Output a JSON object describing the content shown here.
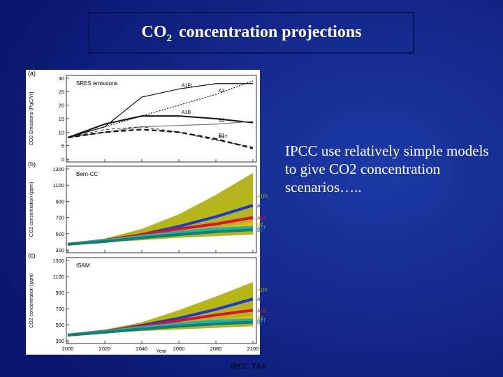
{
  "title": {
    "main": "CO",
    "subscript": "2",
    "rest": "concentration projections"
  },
  "body_text": "IPCC use relatively simple models to give  CO2 concentration scenarios…..",
  "footer": "IPCC TAR",
  "figure": {
    "x": [
      2000,
      2020,
      2040,
      2060,
      2080,
      2100
    ],
    "xlim": [
      2000,
      2100
    ],
    "xticks": [
      2000,
      2020,
      2040,
      2060,
      2080,
      2100
    ],
    "xlabel": "Year",
    "panels": [
      {
        "tag": "(a)",
        "label": "SRES emissions",
        "ylabel": "CO2 Emissions [PgC/Yr]",
        "ylim": [
          0,
          30
        ],
        "yticks": [
          0,
          5,
          10,
          15,
          20,
          25,
          30
        ],
        "series": [
          {
            "name": "A1FI",
            "color": "#111111",
            "style": "solid",
            "values": [
              8,
              12,
              23,
              26,
              28,
              28
            ]
          },
          {
            "name": "A2",
            "color": "#111111",
            "style": "dotted",
            "values": [
              8,
              12,
              16,
              20,
              24,
              29
            ]
          },
          {
            "name": "A1B",
            "color": "#111111",
            "style": "bold",
            "values": [
              8,
              13,
              16,
              16,
              15,
              13.5
            ]
          },
          {
            "name": "B2",
            "color": "#777777",
            "style": "solid",
            "values": [
              8,
              10,
              12,
              12.5,
              13,
              14
            ]
          },
          {
            "name": "A1T",
            "color": "#333333",
            "style": "dashed",
            "values": [
              8,
              11,
              12,
              10,
              7,
              4.5
            ]
          },
          {
            "name": "B1",
            "color": "#111111",
            "style": "bolddash",
            "values": [
              8,
              10,
              11,
              10,
              7.5,
              4
            ]
          }
        ]
      },
      {
        "tag": "(b)",
        "label": "Bern-CC",
        "ylabel": "CO2 concentration (ppm)",
        "ylim": [
          300,
          1300
        ],
        "yticks": [
          300,
          500,
          700,
          900,
          1100,
          1300
        ],
        "envelope": {
          "color": "#b5b520",
          "upper": [
            370,
            440,
            560,
            740,
            980,
            1250
          ],
          "lower": [
            370,
            395,
            420,
            450,
            470,
            490
          ]
        },
        "series": [
          {
            "name": "A1FI",
            "color": "#b8b800",
            "style": "band",
            "values": [
              370,
              420,
              510,
              640,
              790,
              970
            ]
          },
          {
            "name": "A2",
            "color": "#1a3ad0",
            "style": "band",
            "values": [
              370,
              415,
              490,
              590,
              710,
              850
            ]
          },
          {
            "name": "A1B",
            "color": "#e0102a",
            "style": "band",
            "values": [
              370,
              420,
              490,
              560,
              620,
              700
            ]
          },
          {
            "name": "B2",
            "color": "#e8c000",
            "style": "band",
            "values": [
              370,
              405,
              450,
              500,
              560,
              620
            ]
          },
          {
            "name": "A1T",
            "color": "#20b0b0",
            "style": "band",
            "values": [
              370,
              415,
              470,
              520,
              560,
              580
            ]
          },
          {
            "name": "B1",
            "color": "#108070",
            "style": "band",
            "values": [
              370,
              405,
              450,
              490,
              525,
              550
            ]
          }
        ]
      },
      {
        "tag": "(c)",
        "label": "ISAM",
        "ylabel": "CO2 concentration (ppm)",
        "ylim": [
          300,
          1300
        ],
        "yticks": [
          300,
          500,
          700,
          900,
          1100,
          1300
        ],
        "envelope": {
          "color": "#b5b520",
          "upper": [
            370,
            430,
            530,
            680,
            850,
            1030
          ],
          "lower": [
            370,
            395,
            420,
            440,
            460,
            480
          ]
        },
        "series": [
          {
            "name": "A1FI",
            "color": "#b8b800",
            "style": "band",
            "values": [
              370,
              420,
              510,
              630,
              770,
              940
            ]
          },
          {
            "name": "A2",
            "color": "#1a3ad0",
            "style": "band",
            "values": [
              370,
              415,
              490,
              580,
              690,
              820
            ]
          },
          {
            "name": "A1B",
            "color": "#e0102a",
            "style": "band",
            "values": [
              370,
              420,
              480,
              550,
              620,
              680
            ]
          },
          {
            "name": "B2",
            "color": "#e8c000",
            "style": "band",
            "values": [
              370,
              405,
              445,
              490,
              540,
              590
            ]
          },
          {
            "name": "A1T",
            "color": "#20b0b0",
            "style": "band",
            "values": [
              370,
              415,
              465,
              510,
              545,
              560
            ]
          },
          {
            "name": "B1",
            "color": "#108070",
            "style": "band",
            "values": [
              370,
              405,
              445,
              480,
              510,
              530
            ]
          }
        ]
      }
    ]
  }
}
